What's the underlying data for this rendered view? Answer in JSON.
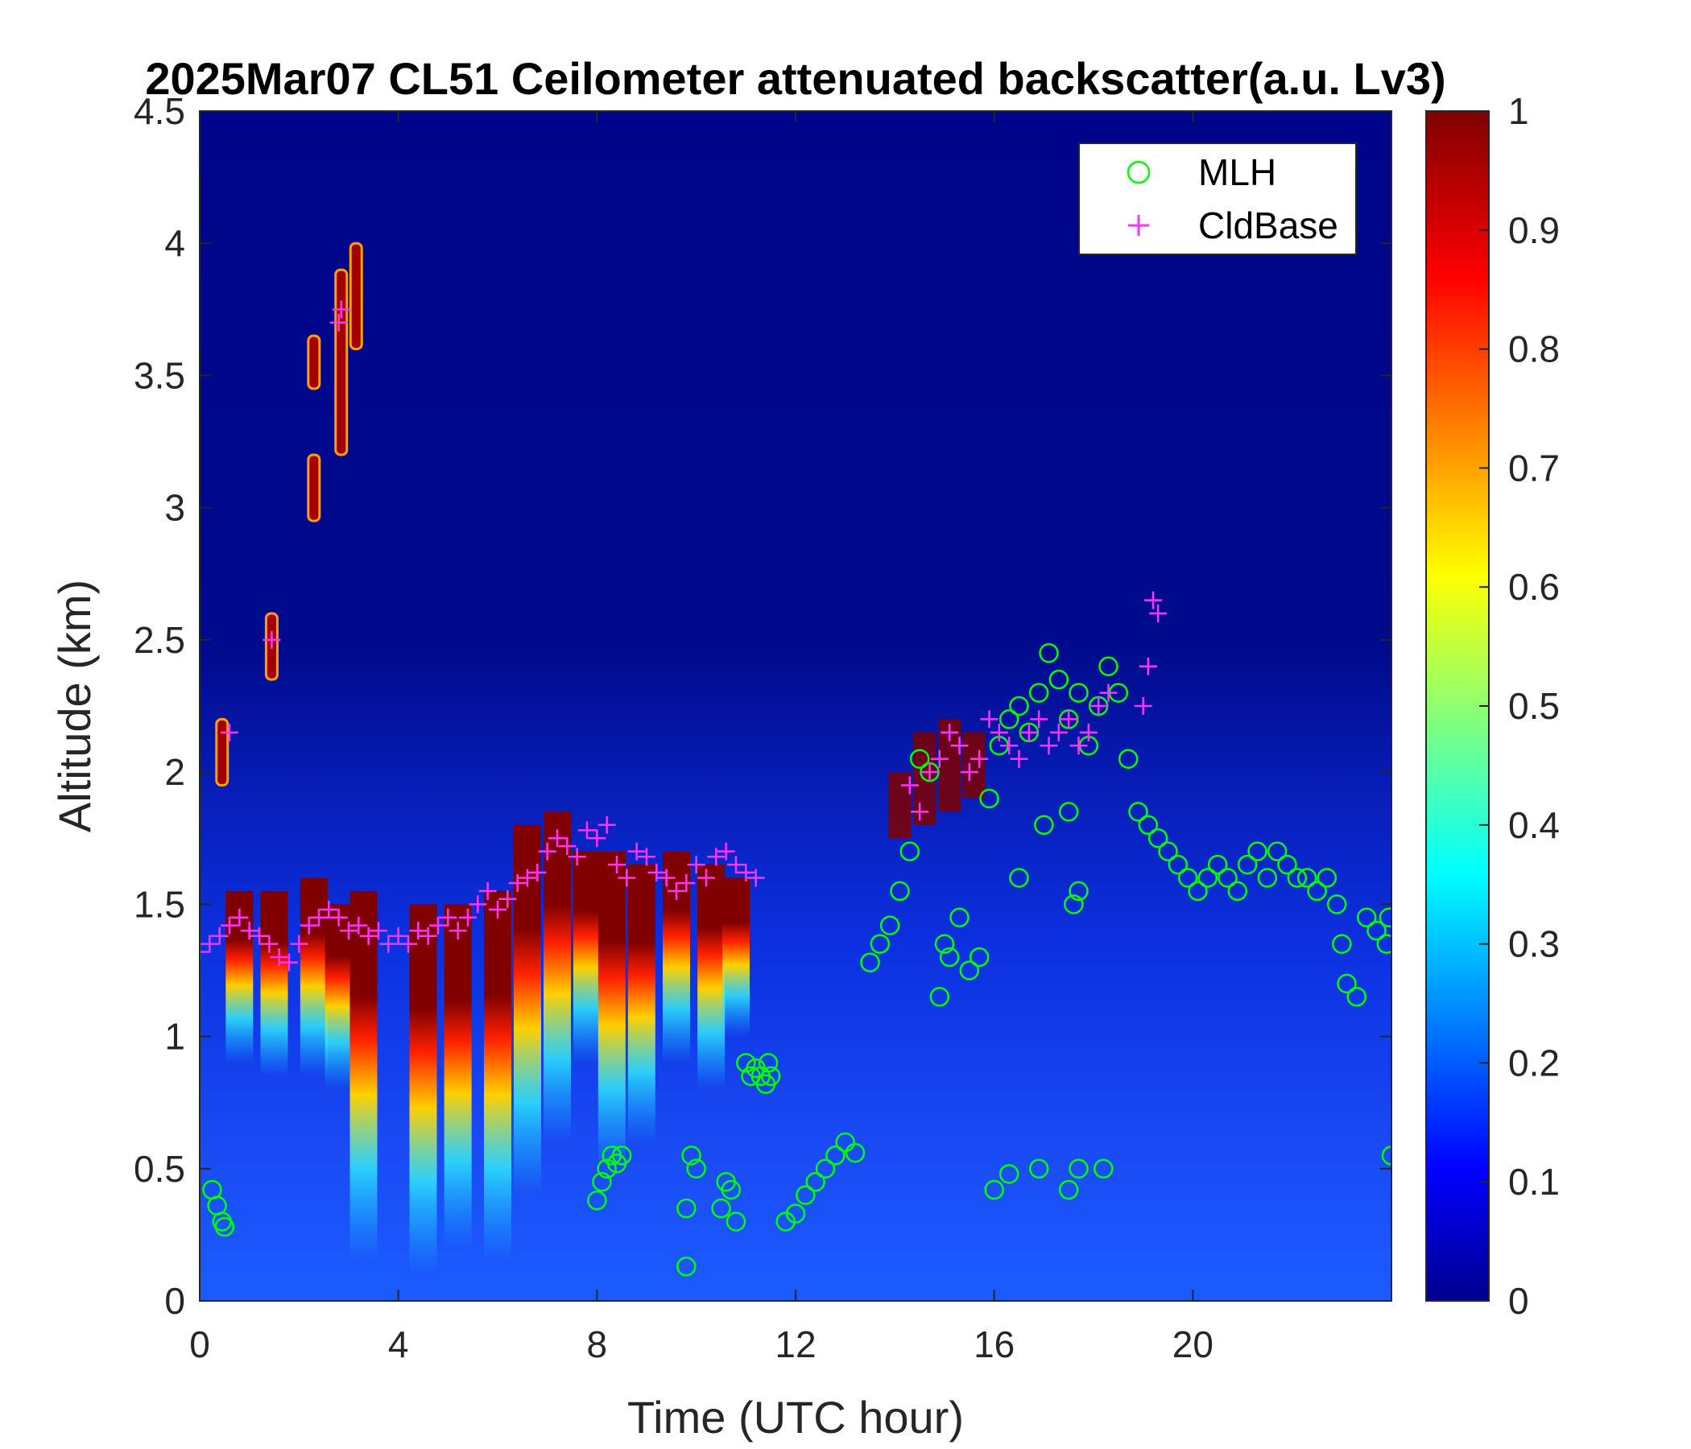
{
  "chart_data": {
    "type": "heatmap",
    "title": "2025Mar07 CL51 Ceilometer attenuated backscatter(a.u. Lv3)",
    "xlabel": "Time (UTC hour)",
    "ylabel": "Altitude (km)",
    "xlim": [
      0,
      24
    ],
    "ylim": [
      0,
      4.5
    ],
    "xticks": [
      0,
      4,
      8,
      12,
      16,
      20
    ],
    "xtick_labels": [
      "0",
      "4",
      "8",
      "12",
      "16",
      "20"
    ],
    "yticks": [
      0,
      0.5,
      1,
      1.5,
      2,
      2.5,
      3,
      3.5,
      4,
      4.5
    ],
    "ytick_labels": [
      "0",
      "0.5",
      "1",
      "1.5",
      "2",
      "2.5",
      "3",
      "3.5",
      "4",
      "4.5"
    ],
    "colorbar": {
      "colormap": "jet",
      "range": [
        0,
        1
      ],
      "ticks": [
        0,
        0.1,
        0.2,
        0.3,
        0.4,
        0.5,
        0.6,
        0.7,
        0.8,
        0.9,
        1
      ],
      "tick_labels": [
        "0",
        "0.1",
        "0.2",
        "0.3",
        "0.4",
        "0.5",
        "0.6",
        "0.7",
        "0.8",
        "0.9",
        "1"
      ]
    },
    "legend": {
      "placement": "top-right",
      "entries": [
        {
          "label": "MLH",
          "marker": "circle",
          "color": "#00ff00"
        },
        {
          "label": "CldBase",
          "marker": "plus",
          "color": "#ff33ff"
        }
      ]
    },
    "features": {
      "cloud_layer": [
        [
          0.8,
          1.3,
          1.55
        ],
        [
          1.5,
          1.25,
          1.55
        ],
        [
          2.3,
          1.25,
          1.6
        ],
        [
          2.8,
          1.2,
          1.5
        ],
        [
          3.3,
          0.55,
          1.55
        ],
        [
          4.5,
          0.5,
          1.5
        ],
        [
          5.2,
          0.6,
          1.5
        ],
        [
          6.0,
          0.55,
          1.55
        ],
        [
          6.6,
          0.8,
          1.8
        ],
        [
          7.2,
          1.0,
          1.85
        ],
        [
          7.8,
          1.3,
          1.7
        ],
        [
          8.3,
          0.9,
          1.7
        ],
        [
          8.9,
          1.0,
          1.65
        ],
        [
          9.6,
          1.3,
          1.7
        ],
        [
          10.3,
          1.2,
          1.65
        ],
        [
          10.8,
          1.4,
          1.6
        ]
      ],
      "high_cloud_blobs": [
        [
          0.45,
          1.95,
          2.2
        ],
        [
          1.45,
          2.35,
          2.6
        ],
        [
          2.3,
          2.95,
          3.2
        ],
        [
          2.3,
          3.45,
          3.65
        ],
        [
          2.85,
          3.2,
          3.9
        ],
        [
          3.15,
          3.6,
          4.0
        ]
      ],
      "afternoon_cloud": [
        [
          14.1,
          1.75,
          2.0
        ],
        [
          14.6,
          1.8,
          2.15
        ],
        [
          15.1,
          1.85,
          2.2
        ],
        [
          15.6,
          1.9,
          2.15
        ]
      ]
    },
    "series": [
      {
        "name": "MLH",
        "marker": "circle",
        "x": [
          0.25,
          0.35,
          0.45,
          0.5,
          8.0,
          8.1,
          8.2,
          8.3,
          8.4,
          8.5,
          9.8,
          9.9,
          10.0,
          10.5,
          10.6,
          10.7,
          10.8,
          11.0,
          11.1,
          11.2,
          11.3,
          11.4,
          11.45,
          11.5,
          11.8,
          12.0,
          12.2,
          12.4,
          12.6,
          12.8,
          13.0,
          13.2,
          13.5,
          13.7,
          13.9,
          14.1,
          14.3,
          14.5,
          14.7,
          14.9,
          15.1,
          15.3,
          15.5,
          15.7,
          15.9,
          16.1,
          16.3,
          16.5,
          16.7,
          16.9,
          17.1,
          17.3,
          17.5,
          17.7,
          17.9,
          18.1,
          18.3,
          18.5,
          18.7,
          18.9,
          19.1,
          19.3,
          19.5,
          19.7,
          19.9,
          20.1,
          20.3,
          20.5,
          20.7,
          20.9,
          21.1,
          21.3,
          21.5,
          21.7,
          21.9,
          22.1,
          22.3,
          22.5,
          22.7,
          22.9,
          23.0,
          23.1,
          23.3,
          23.5,
          23.7,
          23.9,
          23.95,
          24.0,
          9.8,
          16.0,
          16.3,
          16.9,
          17.5,
          17.7,
          18.2,
          17.6,
          17.7,
          15.0,
          16.5,
          17.0,
          17.5
        ],
        "y": [
          0.42,
          0.36,
          0.3,
          0.28,
          0.38,
          0.45,
          0.5,
          0.55,
          0.52,
          0.55,
          0.35,
          0.55,
          0.5,
          0.35,
          0.45,
          0.42,
          0.3,
          0.9,
          0.85,
          0.88,
          0.85,
          0.82,
          0.9,
          0.85,
          0.3,
          0.33,
          0.4,
          0.45,
          0.5,
          0.55,
          0.6,
          0.56,
          1.28,
          1.35,
          1.42,
          1.55,
          1.7,
          2.05,
          2.0,
          1.15,
          1.3,
          1.45,
          1.25,
          1.3,
          1.9,
          2.1,
          2.2,
          2.25,
          2.15,
          2.3,
          2.45,
          2.35,
          2.2,
          2.3,
          2.1,
          2.25,
          2.4,
          2.3,
          2.05,
          1.85,
          1.8,
          1.75,
          1.7,
          1.65,
          1.6,
          1.55,
          1.6,
          1.65,
          1.6,
          1.55,
          1.65,
          1.7,
          1.6,
          1.7,
          1.65,
          1.6,
          1.6,
          1.55,
          1.6,
          1.5,
          1.35,
          1.2,
          1.15,
          1.45,
          1.4,
          1.35,
          1.45,
          0.55,
          0.13,
          0.42,
          0.48,
          0.5,
          0.42,
          0.5,
          0.5,
          1.5,
          1.55,
          1.35,
          1.6,
          1.8,
          1.85
        ],
        "color": "#00ff00"
      },
      {
        "name": "CldBase",
        "marker": "plus",
        "x": [
          0.0,
          0.2,
          0.4,
          0.6,
          0.8,
          1.0,
          1.2,
          1.4,
          1.6,
          1.8,
          2.0,
          2.2,
          2.4,
          2.6,
          2.8,
          3.0,
          3.2,
          3.4,
          3.6,
          3.8,
          4.0,
          4.2,
          4.4,
          4.6,
          4.8,
          5.0,
          5.2,
          5.4,
          5.6,
          5.8,
          6.0,
          6.2,
          6.4,
          6.6,
          6.8,
          7.0,
          7.2,
          7.4,
          7.6,
          7.8,
          8.0,
          8.2,
          8.4,
          8.6,
          8.8,
          9.0,
          9.2,
          9.4,
          9.6,
          9.8,
          10.0,
          10.2,
          10.4,
          10.6,
          10.8,
          11.0,
          11.2,
          0.6,
          1.45,
          2.8,
          2.85,
          14.3,
          14.5,
          14.7,
          14.9,
          15.1,
          15.3,
          15.5,
          15.7,
          15.9,
          16.1,
          16.3,
          16.5,
          16.7,
          16.9,
          17.1,
          17.3,
          17.5,
          17.7,
          17.9,
          18.1,
          18.3,
          19.0,
          19.1,
          19.2,
          19.3
        ],
        "y": [
          1.32,
          1.35,
          1.38,
          1.42,
          1.45,
          1.4,
          1.38,
          1.35,
          1.3,
          1.28,
          1.35,
          1.42,
          1.45,
          1.48,
          1.45,
          1.4,
          1.42,
          1.38,
          1.4,
          1.35,
          1.38,
          1.35,
          1.4,
          1.38,
          1.42,
          1.45,
          1.4,
          1.45,
          1.5,
          1.55,
          1.48,
          1.52,
          1.58,
          1.6,
          1.62,
          1.7,
          1.75,
          1.72,
          1.68,
          1.78,
          1.75,
          1.8,
          1.65,
          1.6,
          1.7,
          1.68,
          1.62,
          1.6,
          1.55,
          1.58,
          1.65,
          1.6,
          1.68,
          1.7,
          1.65,
          1.62,
          1.6,
          2.15,
          2.5,
          3.7,
          3.75,
          1.95,
          1.85,
          2.0,
          2.05,
          2.15,
          2.1,
          2.0,
          2.05,
          2.2,
          2.15,
          2.1,
          2.05,
          2.15,
          2.2,
          2.1,
          2.15,
          2.2,
          2.1,
          2.15,
          2.25,
          2.3,
          2.25,
          2.4,
          2.65,
          2.6
        ],
        "color": "#ff33ff"
      }
    ]
  }
}
